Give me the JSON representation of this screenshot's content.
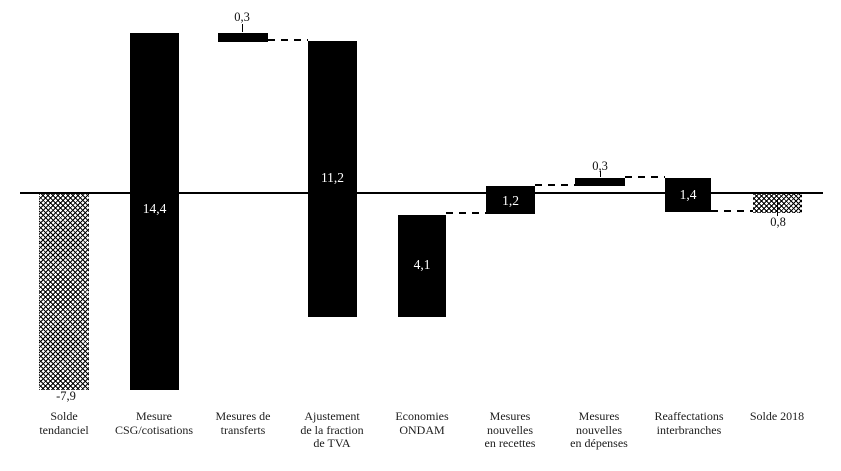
{
  "chart_data": {
    "type": "bar",
    "subtype": "waterfall",
    "title": "",
    "xlabel": "",
    "ylabel": "",
    "categories": [
      "Solde tendanciel",
      "Mesure CSG/cotisations",
      "Mesures de transferts",
      "Ajustement de la fraction de TVA",
      "Economies ONDAM",
      "Mesures nouvelles en recettes",
      "Mesures nouvelles en dépenses",
      "Reaffectations interbranches",
      "Solde 2018"
    ],
    "values": [
      -7.9,
      14.4,
      -0.3,
      -11.2,
      4.1,
      1.2,
      0.3,
      -1.4,
      -0.8
    ],
    "displayed_value_labels": [
      "-7,9",
      "14,4",
      "0,3",
      "11,2",
      "4,1",
      "1,2",
      "0,3",
      "1,4",
      "0,8"
    ],
    "segment_levels": [
      {
        "from": 0,
        "to": -7.9
      },
      {
        "from": -7.9,
        "to": 6.5
      },
      {
        "from": 6.5,
        "to": 6.2
      },
      {
        "from": 6.2,
        "to": -5.0
      },
      {
        "from": -5.0,
        "to": -0.9
      },
      {
        "from": -0.9,
        "to": 0.3
      },
      {
        "from": 0.3,
        "to": 0.6
      },
      {
        "from": 0.6,
        "to": -0.8
      },
      {
        "from": 0,
        "to": -0.8
      }
    ],
    "bar_styles": [
      "hatched",
      "solid",
      "solid",
      "solid",
      "solid",
      "solid",
      "solid",
      "solid",
      "hatched"
    ],
    "value_label_placement": [
      "below",
      "inside",
      "above",
      "inside",
      "inside",
      "inside",
      "above",
      "inside",
      "below"
    ],
    "baseline": 0,
    "ylim": [
      -8.2,
      7.2
    ],
    "grid": false,
    "legend": false,
    "connector_style": "dashed",
    "colors": {
      "bar_fill": "#000000",
      "inside_label": "#ffffff",
      "outside_label": "#111111",
      "axis_line": "#000000",
      "background": "#ffffff"
    }
  },
  "bars": [
    {
      "name": "solde-tendanciel",
      "value_label": "-7,9",
      "lines": [
        "Solde",
        "tendanciel"
      ]
    },
    {
      "name": "mesure-csg-cotisations",
      "value_label": "14,4",
      "lines": [
        "Mesure",
        "CSG/cotisations"
      ]
    },
    {
      "name": "mesures-de-transferts",
      "value_label": "0,3",
      "lines": [
        "Mesures de",
        "transferts"
      ]
    },
    {
      "name": "ajustement-fraction-tva",
      "value_label": "11,2",
      "lines": [
        "Ajustement",
        "de la fraction",
        "de TVA"
      ]
    },
    {
      "name": "economies-ondam",
      "value_label": "4,1",
      "lines": [
        "Economies",
        "ONDAM"
      ]
    },
    {
      "name": "mesures-nouvelles-recettes",
      "value_label": "1,2",
      "lines": [
        "Mesures",
        "nouvelles",
        "en recettes"
      ]
    },
    {
      "name": "mesures-nouvelles-depenses",
      "value_label": "0,3",
      "lines": [
        "Mesures",
        "nouvelles",
        "en dépenses"
      ]
    },
    {
      "name": "reaffectations-interbranches",
      "value_label": "1,4",
      "lines": [
        "Reaffectations",
        "interbranches"
      ]
    },
    {
      "name": "solde-2018",
      "value_label": "0,8",
      "lines": [
        "Solde 2018"
      ]
    }
  ]
}
